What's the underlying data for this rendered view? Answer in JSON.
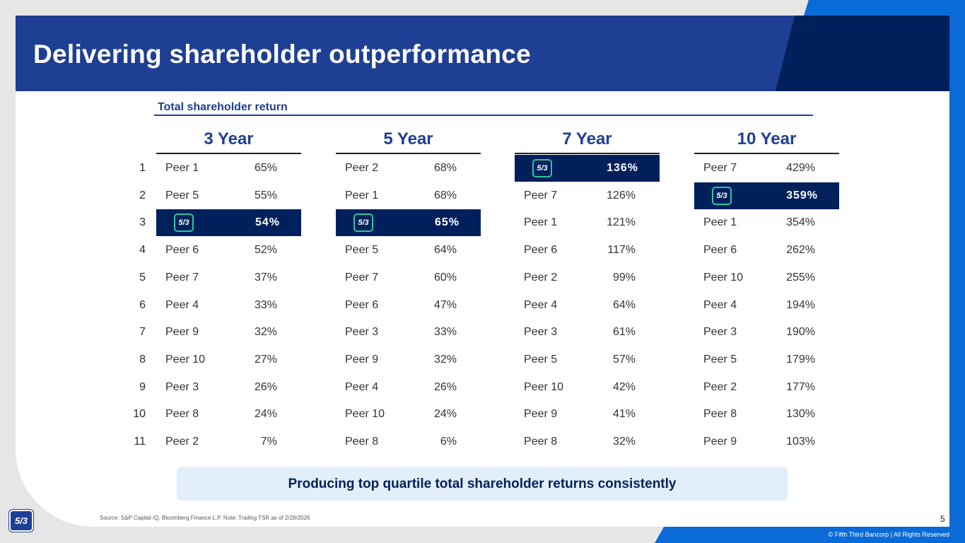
{
  "header": {
    "title": "Delivering shareholder outperformance"
  },
  "section": {
    "label": "Total shareholder return"
  },
  "ranks": [
    "1",
    "2",
    "3",
    "4",
    "5",
    "6",
    "7",
    "8",
    "9",
    "10",
    "11"
  ],
  "logo_text": "5/3",
  "periods": [
    {
      "heading": "3 Year",
      "rows": [
        {
          "peer": "Peer 1",
          "value": "65%"
        },
        {
          "peer": "Peer 5",
          "value": "55%"
        },
        {
          "peer": "",
          "value": "54%",
          "highlight": true
        },
        {
          "peer": "Peer 6",
          "value": "52%"
        },
        {
          "peer": "Peer 7",
          "value": "37%"
        },
        {
          "peer": "Peer 4",
          "value": "33%"
        },
        {
          "peer": "Peer 9",
          "value": "32%"
        },
        {
          "peer": "Peer 10",
          "value": "27%"
        },
        {
          "peer": "Peer 3",
          "value": "26%"
        },
        {
          "peer": "Peer 8",
          "value": "24%"
        },
        {
          "peer": "Peer 2",
          "value": "7%"
        }
      ]
    },
    {
      "heading": "5 Year",
      "rows": [
        {
          "peer": "Peer 2",
          "value": "68%"
        },
        {
          "peer": "Peer 1",
          "value": "68%"
        },
        {
          "peer": "",
          "value": "65%",
          "highlight": true
        },
        {
          "peer": "Peer 5",
          "value": "64%"
        },
        {
          "peer": "Peer 7",
          "value": "60%"
        },
        {
          "peer": "Peer 6",
          "value": "47%"
        },
        {
          "peer": "Peer 3",
          "value": "33%"
        },
        {
          "peer": "Peer 9",
          "value": "32%"
        },
        {
          "peer": "Peer 4",
          "value": "26%"
        },
        {
          "peer": "Peer 10",
          "value": "24%"
        },
        {
          "peer": "Peer 8",
          "value": "6%"
        }
      ]
    },
    {
      "heading": "7 Year",
      "rows": [
        {
          "peer": "",
          "value": "136%",
          "highlight": true
        },
        {
          "peer": "Peer 7",
          "value": "126%"
        },
        {
          "peer": "Peer 1",
          "value": "121%"
        },
        {
          "peer": "Peer 6",
          "value": "117%"
        },
        {
          "peer": "Peer 2",
          "value": "99%"
        },
        {
          "peer": "Peer 4",
          "value": "64%"
        },
        {
          "peer": "Peer 3",
          "value": "61%"
        },
        {
          "peer": "Peer 5",
          "value": "57%"
        },
        {
          "peer": "Peer 10",
          "value": "42%"
        },
        {
          "peer": "Peer 9",
          "value": "41%"
        },
        {
          "peer": "Peer 8",
          "value": "32%"
        }
      ]
    },
    {
      "heading": "10 Year",
      "rows": [
        {
          "peer": "Peer 7",
          "value": "429%"
        },
        {
          "peer": "",
          "value": "359%",
          "highlight": true
        },
        {
          "peer": "Peer 1",
          "value": "354%"
        },
        {
          "peer": "Peer 6",
          "value": "262%"
        },
        {
          "peer": "Peer 10",
          "value": "255%"
        },
        {
          "peer": "Peer 4",
          "value": "194%"
        },
        {
          "peer": "Peer 3",
          "value": "190%"
        },
        {
          "peer": "Peer 5",
          "value": "179%"
        },
        {
          "peer": "Peer 2",
          "value": "177%"
        },
        {
          "peer": "Peer 8",
          "value": "130%"
        },
        {
          "peer": "Peer 9",
          "value": "103%"
        }
      ]
    }
  ],
  "callout": "Producing top quartile total shareholder returns consistently",
  "footer": {
    "source": "Source: S&P Capital IQ, Bloomberg Finance L.P. Note: Trailing TSR as of 2/28/2026",
    "page_number": "5",
    "copyright": "© Fifth Third Bancorp | All Rights Reserved"
  },
  "colors": {
    "brand_navy": "#00205b",
    "brand_blue": "#1e3f93",
    "accent_blue": "#0a6bd8",
    "logo_green": "#2fc4a0"
  }
}
